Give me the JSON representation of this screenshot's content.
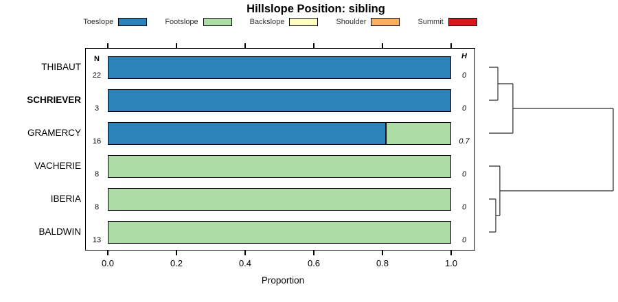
{
  "title": "Hillslope Position: sibling",
  "legend": {
    "items": [
      {
        "label": "Toeslope",
        "color": "#2B83BA"
      },
      {
        "label": "Footslope",
        "color": "#ABDDA4"
      },
      {
        "label": "Backslope",
        "color": "#FFFFBF"
      },
      {
        "label": "Shoulder",
        "color": "#FDAE61"
      },
      {
        "label": "Summit",
        "color": "#D7191C"
      }
    ]
  },
  "columns": {
    "n_header": "N",
    "h_header": "H"
  },
  "rows": [
    {
      "name": "THIBAUT",
      "bold": false,
      "n": "22",
      "h": "0",
      "segments": [
        {
          "class": "Toeslope",
          "proportion": 1.0
        }
      ]
    },
    {
      "name": "SCHRIEVER",
      "bold": true,
      "n": "3",
      "h": "0",
      "segments": [
        {
          "class": "Toeslope",
          "proportion": 1.0
        }
      ]
    },
    {
      "name": "GRAMERCY",
      "bold": false,
      "n": "16",
      "h": "0.7",
      "segments": [
        {
          "class": "Toeslope",
          "proportion": 0.81
        },
        {
          "class": "Footslope",
          "proportion": 0.19
        }
      ]
    },
    {
      "name": "VACHERIE",
      "bold": false,
      "n": "8",
      "h": "0",
      "segments": [
        {
          "class": "Footslope",
          "proportion": 1.0
        }
      ]
    },
    {
      "name": "IBERIA",
      "bold": false,
      "n": "8",
      "h": "0",
      "segments": [
        {
          "class": "Footslope",
          "proportion": 1.0
        }
      ]
    },
    {
      "name": "BALDWIN",
      "bold": false,
      "n": "13",
      "h": "0",
      "segments": [
        {
          "class": "Footslope",
          "proportion": 1.0
        }
      ]
    }
  ],
  "x_axis": {
    "label": "Proportion",
    "ticks": [
      "0.0",
      "0.2",
      "0.4",
      "0.6",
      "0.8",
      "1.0"
    ],
    "range": [
      0,
      1
    ]
  },
  "dendrogram": {
    "merges": [
      [
        "L0",
        "L1",
        0.072
      ],
      [
        "M0",
        "L2",
        0.193
      ],
      [
        "L4",
        "L5",
        0.055
      ],
      [
        "L3",
        "M2",
        0.088
      ],
      [
        "M1",
        "M3",
        1.0
      ]
    ]
  },
  "chart_data": {
    "type": "bar",
    "orientation": "horizontal",
    "stacked": true,
    "title": "Hillslope Position: sibling",
    "xlabel": "Proportion",
    "xlim": [
      0,
      1.07
    ],
    "x_ticks": [
      0.0,
      0.2,
      0.4,
      0.6,
      0.8,
      1.0
    ],
    "categories": [
      "THIBAUT",
      "SCHRIEVER",
      "GRAMERCY",
      "VACHERIE",
      "IBERIA",
      "BALDWIN"
    ],
    "highlighted_category": "SCHRIEVER",
    "series": [
      {
        "name": "Toeslope",
        "color": "#2B83BA",
        "values": [
          1.0,
          1.0,
          0.81,
          0,
          0,
          0
        ]
      },
      {
        "name": "Footslope",
        "color": "#ABDDA4",
        "values": [
          0,
          0,
          0.19,
          1.0,
          1.0,
          1.0
        ]
      },
      {
        "name": "Backslope",
        "color": "#FFFFBF",
        "values": [
          0,
          0,
          0,
          0,
          0,
          0
        ]
      },
      {
        "name": "Shoulder",
        "color": "#FDAE61",
        "values": [
          0,
          0,
          0,
          0,
          0,
          0
        ]
      },
      {
        "name": "Summit",
        "color": "#D7191C",
        "values": [
          0,
          0,
          0,
          0,
          0,
          0
        ]
      }
    ],
    "annotations": {
      "N": [
        22,
        3,
        16,
        8,
        8,
        13
      ],
      "H": [
        0,
        0,
        0.7,
        0,
        0,
        0
      ]
    },
    "legend_position": "top",
    "grid": false,
    "dendrogram_order": [
      "THIBAUT",
      "SCHRIEVER",
      "GRAMERCY",
      "VACHERIE",
      "IBERIA",
      "BALDWIN"
    ],
    "dendrogram_merge_heights": [
      0.072,
      0.193,
      0.055,
      0.088,
      1.0
    ]
  }
}
